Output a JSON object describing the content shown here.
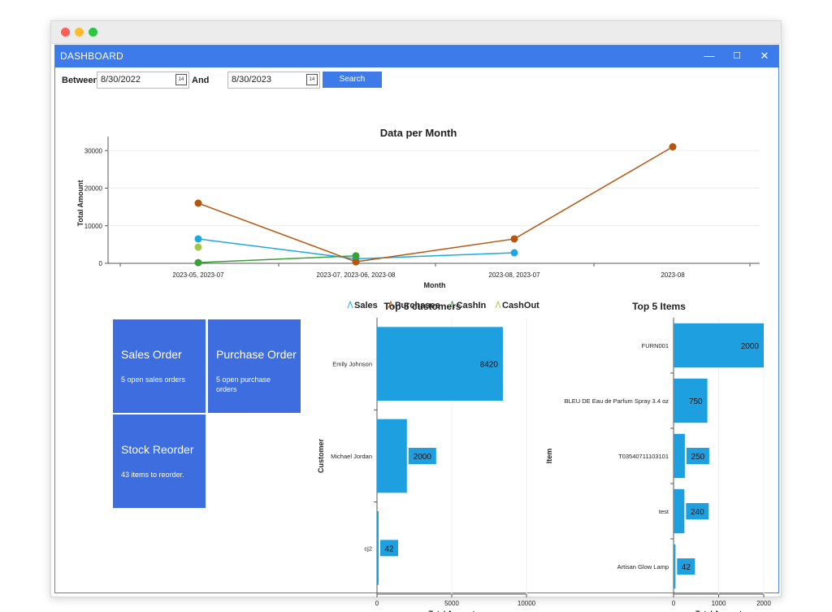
{
  "window": {
    "title": "DASHBOARD",
    "controls": [
      "—",
      "☐",
      "✕"
    ]
  },
  "filter": {
    "between_label": "Between",
    "start_date": "8/30/2022",
    "and_label": "And",
    "end_date": "8/30/2023",
    "search_label": "Search",
    "calendar_glyph": "14"
  },
  "tiles": [
    {
      "title": "Sales Order",
      "subtitle": "5 open sales orders"
    },
    {
      "title": "Purchase Order",
      "subtitle": "5 open purchase orders"
    },
    {
      "title": "Stock Reorder",
      "subtitle": "43 items to reorder."
    }
  ],
  "colors": {
    "titlebar": "#3d7bea",
    "tile": "#3d6ddf",
    "bar": "#1e9fe0",
    "sales": "#1ea7e1",
    "purchases": "#b5560c",
    "cashin": "#3aa03a",
    "cashout": "#a6c44a"
  },
  "chart_data": [
    {
      "type": "line",
      "title": "Data per Month",
      "xlabel": "Month",
      "ylabel": "Total Amount",
      "categories": [
        "2023-05, 2023-07",
        "2023-07, 2023-06, 2023-08",
        "2023-08, 2023-07",
        "2023-08"
      ],
      "ylim": [
        0,
        32000
      ],
      "yticks": [
        0,
        10000,
        20000,
        30000
      ],
      "grid": true,
      "legend_position": "bottom",
      "series": [
        {
          "name": "Sales",
          "values": [
            6500,
            1200,
            2800,
            null
          ]
        },
        {
          "name": "Purchases",
          "values": [
            16000,
            400,
            6500,
            31000
          ]
        },
        {
          "name": "CashIn",
          "values": [
            200,
            2000,
            null,
            null
          ]
        },
        {
          "name": "CashOut",
          "values": [
            4300,
            null,
            null,
            null
          ]
        }
      ]
    },
    {
      "type": "bar",
      "orientation": "horizontal",
      "title": "Top 5 customers",
      "xlabel": "Total Amount",
      "ylabel": "Customer",
      "categories": [
        "Emily Johnson",
        "Michael Jordan",
        "cj2"
      ],
      "values": [
        8420,
        2000,
        42
      ],
      "xlim": [
        0,
        10000
      ],
      "xticks": [
        0,
        5000,
        10000
      ]
    },
    {
      "type": "bar",
      "orientation": "horizontal",
      "title": "Top 5 Items",
      "xlabel": "Total Amount",
      "ylabel": "Item",
      "categories": [
        "FURN001",
        "BLEU DE Eau de Parfum Spray 3.4 oz",
        "T03540711103101",
        "test",
        "Artisan Glow Lamp"
      ],
      "values": [
        2000,
        750,
        250,
        240,
        42
      ],
      "xlim": [
        0,
        2000
      ],
      "xticks": [
        0,
        1000,
        2000
      ]
    }
  ]
}
